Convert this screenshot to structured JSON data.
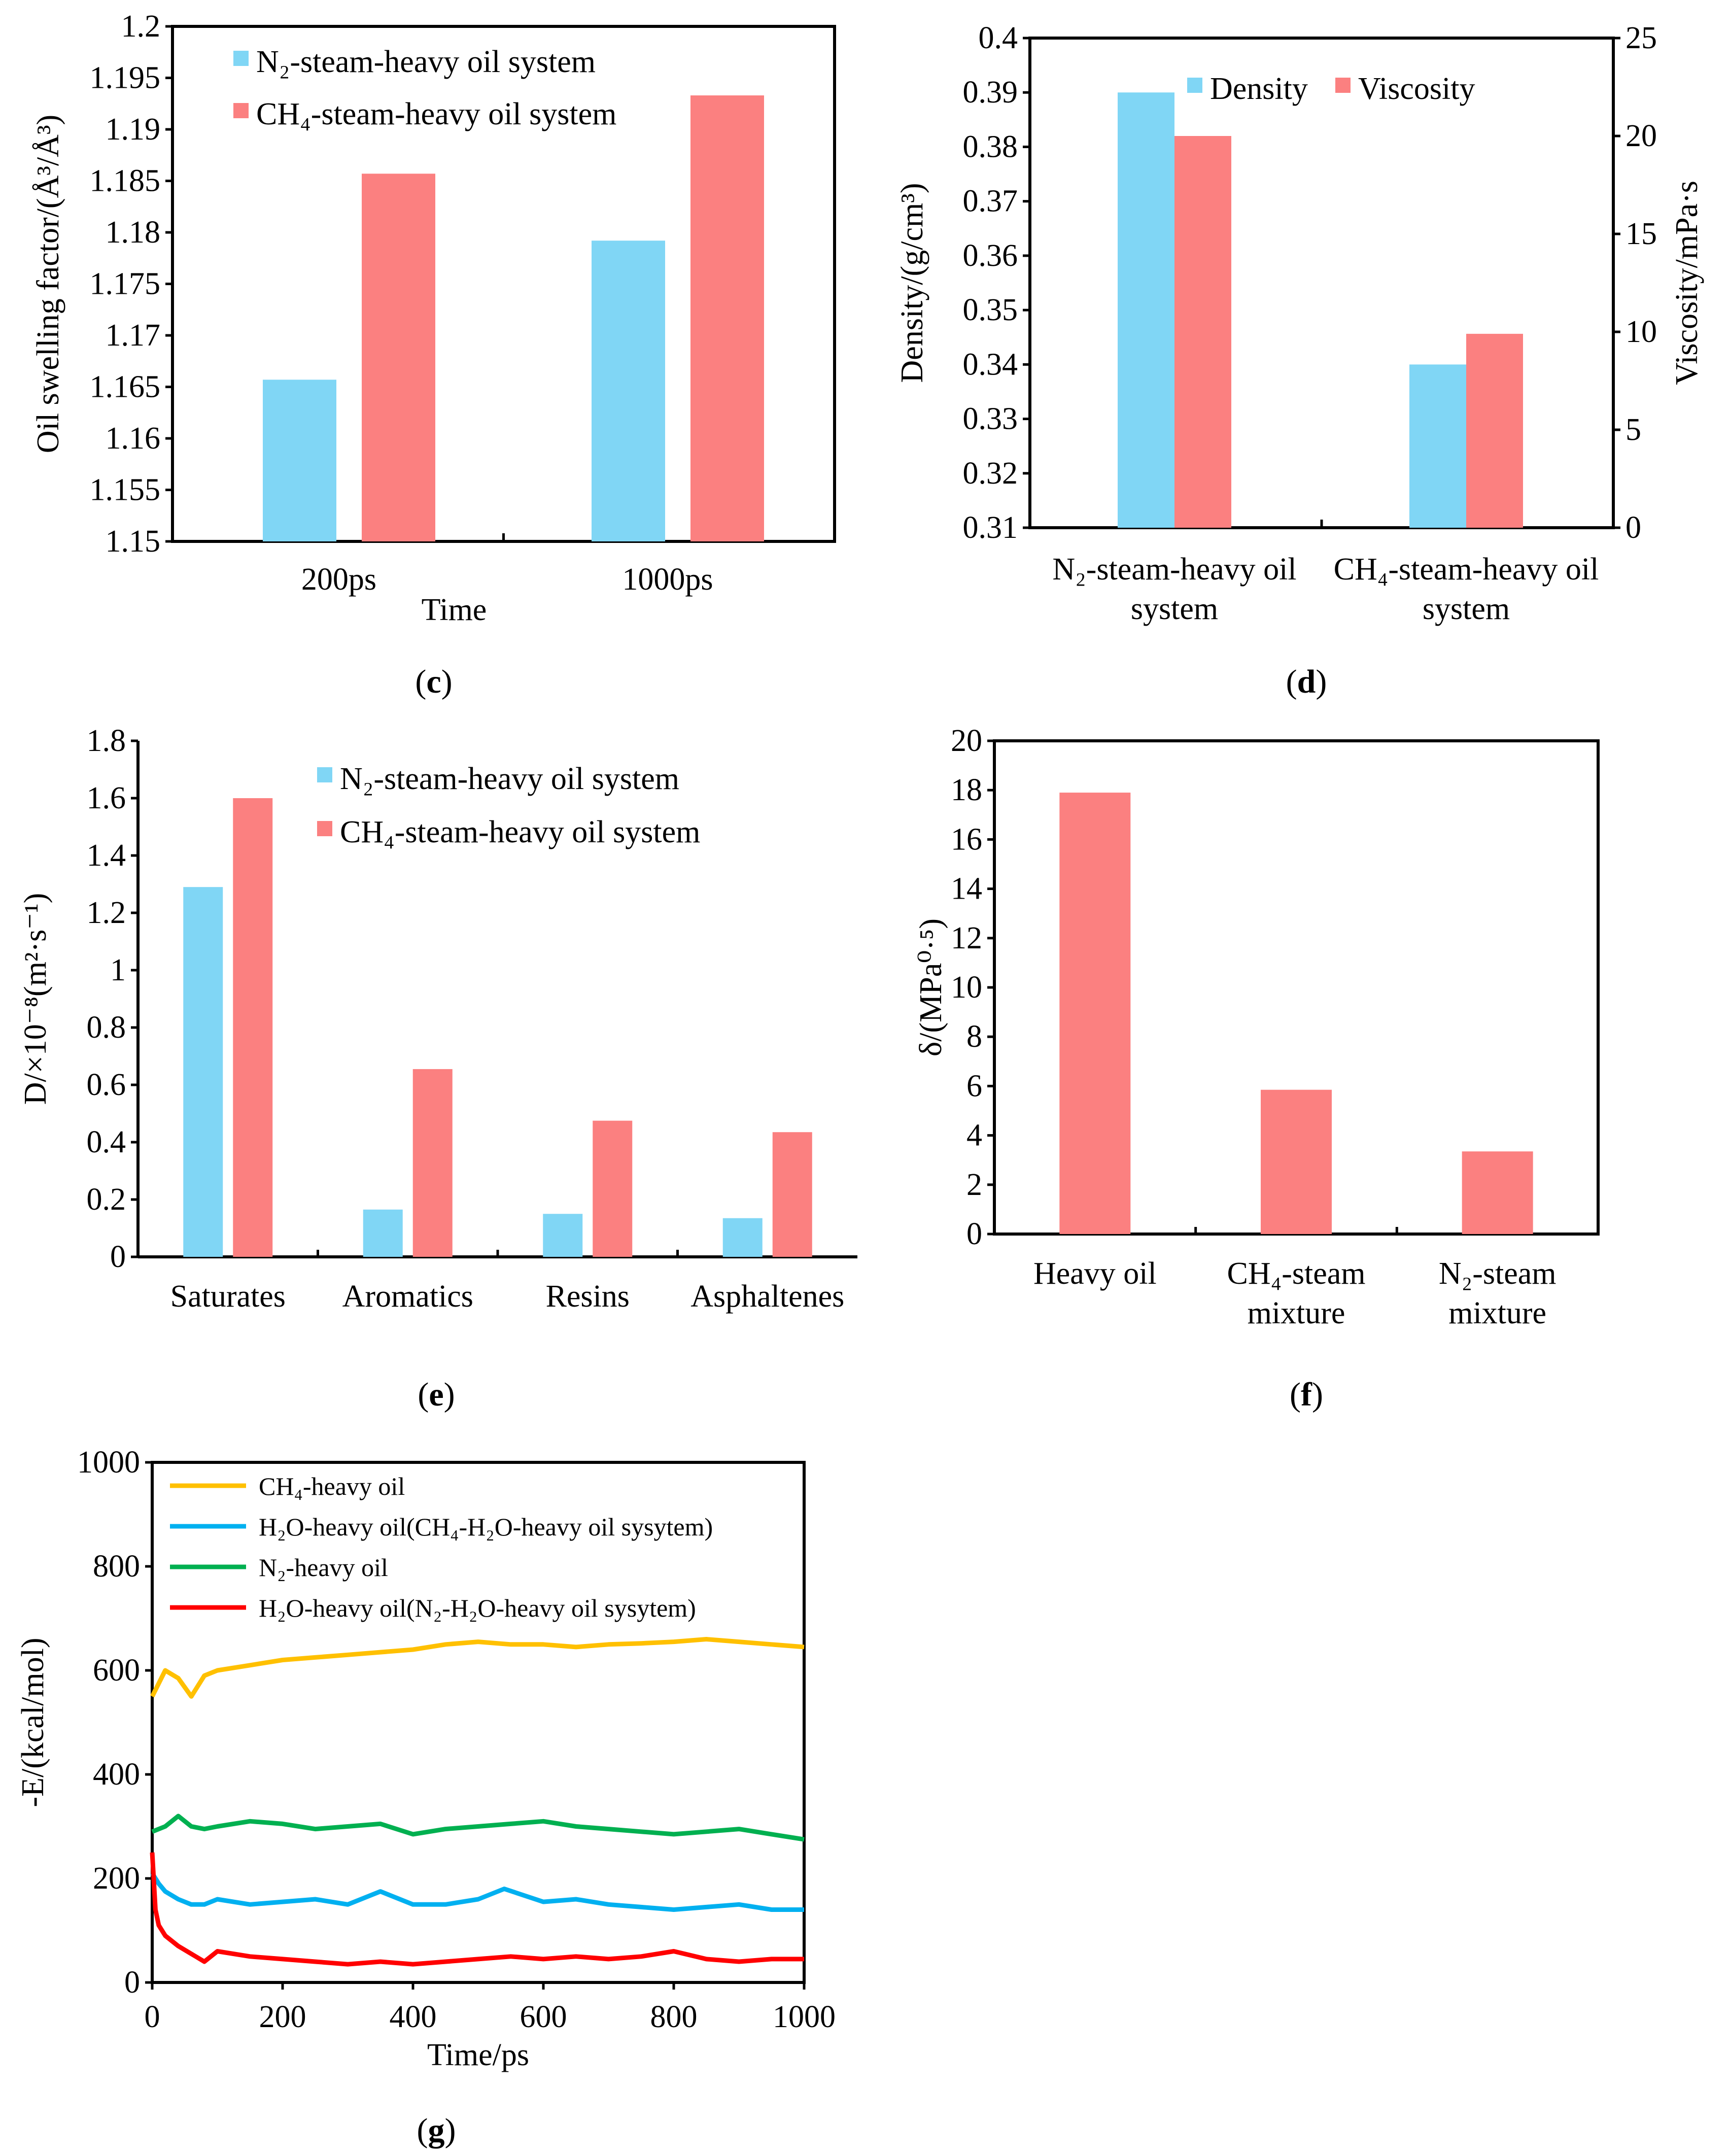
{
  "colors": {
    "blue": "#80D6F5",
    "red": "#FB8080",
    "yellow": "#FFC000",
    "lineblue": "#00B0F0",
    "green": "#00B050",
    "linered": "#FF0000"
  },
  "chart_data": [
    {
      "id": "c",
      "type": "bar",
      "caption": "c",
      "categories": [
        "200ps",
        "1000ps"
      ],
      "series": [
        {
          "name": "N2-steam-heavy oil system",
          "legend_label": "N₂-steam-heavy oil system",
          "color": "#80D6F5",
          "values": [
            1.1657,
            1.1792
          ]
        },
        {
          "name": "CH4-steam-heavy oil system",
          "legend_label": "CH₄-steam-heavy oil system",
          "color": "#FB8080",
          "values": [
            1.1857,
            1.1933
          ]
        }
      ],
      "ylim": [
        1.15,
        1.2
      ],
      "yticks": [
        1.15,
        1.155,
        1.16,
        1.165,
        1.17,
        1.175,
        1.18,
        1.185,
        1.19,
        1.195,
        1.2
      ],
      "ytick_labels": [
        "1.15",
        "1.155",
        "1.16",
        "1.165",
        "1.17",
        "1.175",
        "1.18",
        "1.185",
        "1.19",
        "1.195",
        "1.2"
      ],
      "xlabel": "Time",
      "ylabel": "Oil swelling factor/(Å³/Å³)",
      "legend_position": "top-left"
    },
    {
      "id": "d",
      "type": "bar",
      "caption": "d",
      "categories": [
        "N₂-steam-heavy oil system",
        "CH₄-steam-heavy oil system"
      ],
      "category_lines": [
        [
          "N₂-steam-heavy oil",
          "system"
        ],
        [
          "CH₄-steam-heavy oil",
          "system"
        ]
      ],
      "series": [
        {
          "name": "Density",
          "legend_label": "Density",
          "color": "#80D6F5",
          "axis": "left",
          "values": [
            0.39,
            0.34
          ]
        },
        {
          "name": "Viscosity",
          "legend_label": "Viscosity",
          "color": "#FB8080",
          "axis": "right",
          "values": [
            20.0,
            9.9
          ]
        }
      ],
      "ylim": [
        0.31,
        0.4
      ],
      "yticks": [
        0.31,
        0.32,
        0.33,
        0.34,
        0.35,
        0.36,
        0.37,
        0.38,
        0.39,
        0.4
      ],
      "ytick_labels": [
        "0.31",
        "0.32",
        "0.33",
        "0.34",
        "0.35",
        "0.36",
        "0.37",
        "0.38",
        "0.39",
        "0.4"
      ],
      "y2lim": [
        0,
        25
      ],
      "y2ticks": [
        0,
        5,
        10,
        15,
        20,
        25
      ],
      "y2tick_labels": [
        "0",
        "5",
        "10",
        "15",
        "20",
        "25"
      ],
      "ylabel": "Density/(g/cm³)",
      "y2label": "Viscosity/mPa·s",
      "legend_position": "top-center"
    },
    {
      "id": "e",
      "type": "bar",
      "caption": "e",
      "categories": [
        "Saturates",
        "Aromatics",
        "Resins",
        "Asphaltenes"
      ],
      "series": [
        {
          "name": "N2-steam-heavy oil system",
          "legend_label": "N₂-steam-heavy oil system",
          "color": "#80D6F5",
          "values": [
            1.29,
            0.165,
            0.15,
            0.135
          ]
        },
        {
          "name": "CH4-steam-heavy oil system",
          "legend_label": "CH₄-steam-heavy oil system",
          "color": "#FB8080",
          "values": [
            1.6,
            0.655,
            0.475,
            0.435
          ]
        }
      ],
      "ylim": [
        0,
        1.8
      ],
      "yticks": [
        0,
        0.2,
        0.4,
        0.6,
        0.8,
        1,
        1.2,
        1.4,
        1.6,
        1.8
      ],
      "ytick_labels": [
        "0",
        "0.2",
        "0.4",
        "0.6",
        "0.8",
        "1",
        "1.2",
        "1.4",
        "1.6",
        "1.8"
      ],
      "ylabel": "D/×10⁻⁸(m²·s⁻¹)",
      "legend_position": "top-center"
    },
    {
      "id": "f",
      "type": "bar",
      "caption": "f",
      "categories": [
        "Heavy oil",
        "CH₄-steam mixture",
        "N₂-steam mixture"
      ],
      "category_lines": [
        [
          "Heavy oil"
        ],
        [
          "CH₄-steam",
          "mixture"
        ],
        [
          "N₂-steam",
          "mixture"
        ]
      ],
      "series": [
        {
          "name": "δ",
          "color": "#FB8080",
          "values": [
            17.9,
            5.85,
            3.35
          ]
        }
      ],
      "ylim": [
        0,
        20
      ],
      "yticks": [
        0,
        2,
        4,
        6,
        8,
        10,
        12,
        14,
        16,
        18,
        20
      ],
      "ytick_labels": [
        "0",
        "2",
        "4",
        "6",
        "8",
        "10",
        "12",
        "14",
        "16",
        "18",
        "20"
      ],
      "ylabel": "δ/(MPa⁰·⁵)"
    },
    {
      "id": "g",
      "type": "line",
      "caption": "g",
      "xlim": [
        0,
        1000
      ],
      "xticks": [
        0,
        200,
        400,
        600,
        800,
        1000
      ],
      "xtick_labels": [
        "0",
        "200",
        "400",
        "600",
        "800",
        "1000"
      ],
      "ylim": [
        0,
        1000
      ],
      "yticks": [
        0,
        200,
        400,
        600,
        800,
        1000
      ],
      "ytick_labels": [
        "0",
        "200",
        "400",
        "600",
        "800",
        "1000"
      ],
      "xlabel": "Time/ps",
      "ylabel": "-E/(kcal/mol)",
      "legend_position": "top-left",
      "series": [
        {
          "name": "CH4-heavy oil",
          "legend_label": "CH₄-heavy oil",
          "color": "#FFC000",
          "x": [
            0,
            20,
            40,
            60,
            80,
            100,
            150,
            200,
            250,
            300,
            350,
            400,
            450,
            500,
            550,
            600,
            650,
            700,
            750,
            800,
            850,
            900,
            950,
            1000
          ],
          "y": [
            550,
            600,
            585,
            550,
            590,
            600,
            610,
            620,
            625,
            630,
            635,
            640,
            650,
            655,
            650,
            650,
            645,
            650,
            652,
            655,
            660,
            655,
            650,
            645
          ]
        },
        {
          "name": "H2O-heavy oil(CH4-H2O-heavy oil sysytem)",
          "legend_label": "H₂O-heavy oil(CH₄-H₂O-heavy oil sysytem)",
          "color": "#00B0F0",
          "x": [
            0,
            10,
            20,
            40,
            60,
            80,
            100,
            150,
            200,
            250,
            300,
            350,
            400,
            450,
            500,
            540,
            600,
            650,
            700,
            750,
            800,
            850,
            900,
            950,
            1000
          ],
          "y": [
            210,
            190,
            175,
            160,
            150,
            150,
            160,
            150,
            155,
            160,
            150,
            175,
            150,
            150,
            160,
            180,
            155,
            160,
            150,
            145,
            140,
            145,
            150,
            140,
            140
          ]
        },
        {
          "name": "N2-heavy oil",
          "legend_label": "N₂-heavy oil",
          "color": "#00B050",
          "x": [
            0,
            20,
            40,
            60,
            80,
            100,
            150,
            200,
            250,
            300,
            350,
            400,
            450,
            500,
            550,
            600,
            650,
            700,
            750,
            800,
            850,
            900,
            950,
            1000
          ],
          "y": [
            290,
            300,
            320,
            300,
            295,
            300,
            310,
            305,
            295,
            300,
            305,
            285,
            295,
            300,
            305,
            310,
            300,
            295,
            290,
            285,
            290,
            295,
            285,
            275
          ]
        },
        {
          "name": "H2O-heavy oil(N2-H2O-heavy oil sysytem)",
          "legend_label": "H₂O-heavy oil(N₂-H₂O-heavy oil sysytem)",
          "color": "#FF0000",
          "x": [
            0,
            5,
            10,
            20,
            40,
            60,
            80,
            100,
            150,
            200,
            250,
            300,
            350,
            400,
            450,
            500,
            550,
            600,
            650,
            700,
            750,
            800,
            850,
            900,
            950,
            1000
          ],
          "y": [
            250,
            140,
            110,
            90,
            70,
            55,
            40,
            60,
            50,
            45,
            40,
            35,
            40,
            35,
            40,
            45,
            50,
            45,
            50,
            45,
            50,
            60,
            45,
            40,
            45,
            45
          ]
        }
      ]
    }
  ]
}
